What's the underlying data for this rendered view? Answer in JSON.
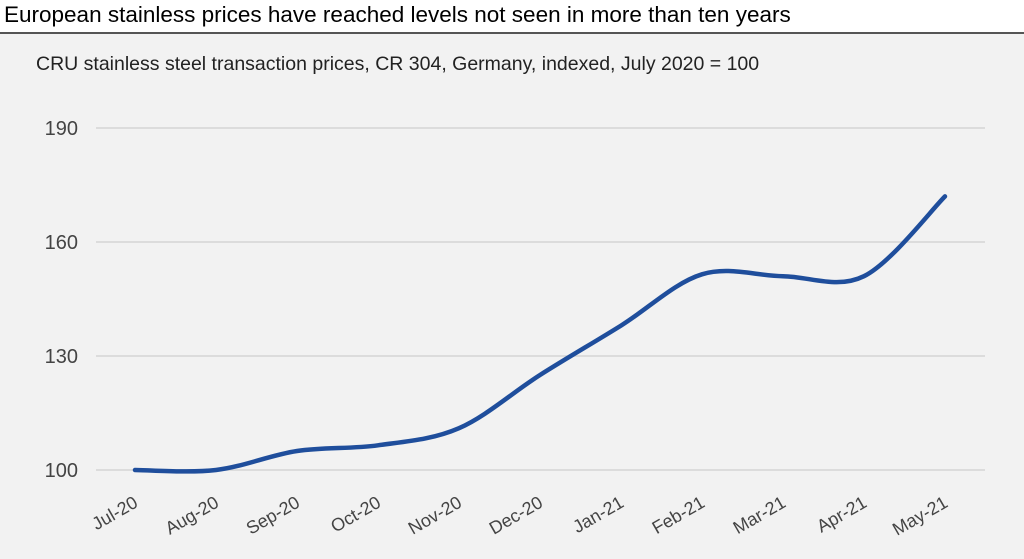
{
  "headline": "European stainless prices have reached levels not seen in more than ten years",
  "colors": {
    "panel_background": "#f2f2f2",
    "gridline": "#d4d4d4",
    "series_line": "#1f4e9c",
    "text": "#444444"
  },
  "chart_data": {
    "type": "line",
    "title": "CRU stainless steel transaction prices, CR 304, Germany, indexed, July 2020 = 100",
    "xlabel": "",
    "ylabel": "",
    "categories": [
      "Jul-20",
      "Aug-20",
      "Sep-20",
      "Oct-20",
      "Nov-20",
      "Dec-20",
      "Jan-21",
      "Feb-21",
      "Mar-21",
      "Apr-21",
      "May-21"
    ],
    "series": [
      {
        "values": [
          100,
          100,
          105,
          106.5,
          111,
          125,
          138,
          151.5,
          151,
          151,
          172
        ]
      }
    ],
    "ylim": [
      100,
      190
    ],
    "yticks": [
      100,
      130,
      160,
      190
    ],
    "grid": "horizontal",
    "legend": "none"
  }
}
